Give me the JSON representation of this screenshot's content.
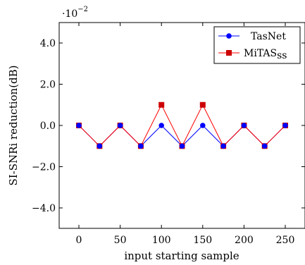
{
  "chart_data": {
    "type": "line",
    "title": "",
    "xlabel": "input starting sample",
    "ylabel": "SI-SNRi reduction(dB)",
    "ylim": [
      -0.05,
      0.05
    ],
    "xlim": [
      -10,
      260
    ],
    "y_scale_label": "·10",
    "y_scale_exponent": "−2",
    "x_ticks": [
      0,
      50,
      100,
      150,
      200,
      250
    ],
    "x_tick_labels": [
      "0",
      "50",
      "100",
      "150",
      "200",
      "250"
    ],
    "y_ticks": [
      -0.04,
      -0.02,
      0,
      0.02,
      0.04
    ],
    "y_tick_labels": [
      "−4.0",
      "−2.0",
      "0.0",
      "2.0",
      "4.0"
    ],
    "grid": false,
    "legend_position": "top-right",
    "x": [
      0,
      25,
      50,
      75,
      100,
      125,
      150,
      175,
      200,
      225,
      250
    ],
    "series": [
      {
        "name": "TasNet",
        "color": "#0000ff",
        "marker": "circle",
        "values": [
          0,
          -0.01,
          0,
          -0.01,
          0,
          -0.01,
          0,
          -0.01,
          0,
          -0.01,
          0
        ]
      },
      {
        "name": "MiTAS_ss",
        "legend_text": "MiTAS",
        "legend_subscript": "ss",
        "color": "#ff0000",
        "marker_fill": "#cc0000",
        "marker": "square",
        "values": [
          0,
          -0.01,
          0,
          -0.01,
          0.01,
          -0.01,
          0.01,
          -0.01,
          0,
          -0.01,
          0
        ]
      }
    ]
  }
}
